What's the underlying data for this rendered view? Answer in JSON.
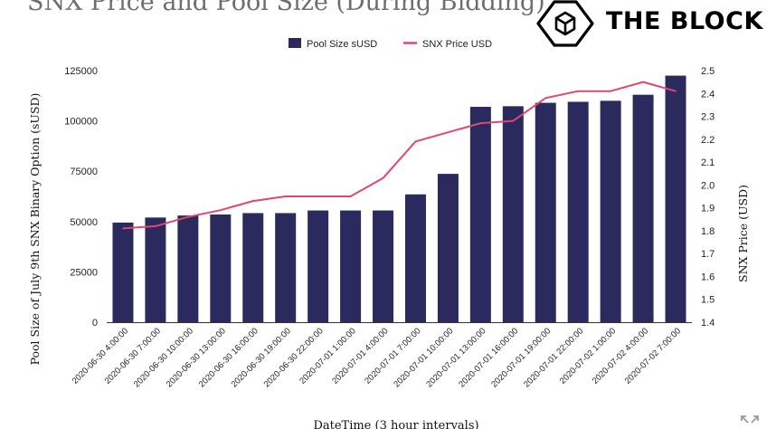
{
  "header": {
    "title": "SNX Price and Pool Size (During Bidding)",
    "brand": "THE BLOCK",
    "logo_icon": "cube-icon",
    "expand_icon": "expand-icon"
  },
  "chart_data": {
    "type": "bar",
    "title": "SNX Price and Pool Size (During Bidding)",
    "xlabel": "DateTime (3 hour intervals)",
    "ylabel": "Pool Size of July 9th SNX Binary Option (sUSD)",
    "y2label": "SNX Price (USD)",
    "ylim": [
      0,
      125000
    ],
    "y2lim": [
      1.4,
      2.5
    ],
    "yticks": [
      "0",
      "25000",
      "50000",
      "75000",
      "100000",
      "125000"
    ],
    "y2ticks": [
      "1.4",
      "1.5",
      "1.6",
      "1.7",
      "1.8",
      "1.9",
      "2.0",
      "2.1",
      "2.2",
      "2.3",
      "2.4",
      "2.5"
    ],
    "grid": false,
    "legend": "top-center",
    "categories": [
      "2020-06-30 4:00:00",
      "2020-06-30 7:00:00",
      "2020-06-30 10:00:00",
      "2020-06-30 13:00:00",
      "2020-06-30 16:00:00",
      "2020-06-30 19:00:00",
      "2020-06-30 22:00:00",
      "2020-07-01 1:00:00",
      "2020-07-01 4:00:00",
      "2020-07-01 7:00:00",
      "2020-07-01 10:00:00",
      "2020-07-01 13:00:00",
      "2020-07-01 16:00:00",
      "2020-07-01 19:00:00",
      "2020-07-01 22:00:00",
      "2020-07-02 1:00:00",
      "2020-07-02 4:00:00",
      "2020-07-02 7:00:00"
    ],
    "series": [
      {
        "name": "Pool Size sUSD",
        "type": "bar",
        "axis": "left",
        "color": "#2b2a5e",
        "values": [
          49500,
          52000,
          53000,
          53500,
          54200,
          54200,
          55500,
          55500,
          55500,
          63500,
          73700,
          107000,
          107300,
          109000,
          109500,
          110000,
          113000,
          122500
        ]
      },
      {
        "name": "SNX Price USD",
        "type": "line",
        "axis": "right",
        "color": "#e0476e",
        "values": [
          1.81,
          1.82,
          1.86,
          1.89,
          1.93,
          1.95,
          1.95,
          1.95,
          2.03,
          2.19,
          2.23,
          2.27,
          2.28,
          2.38,
          2.41,
          2.41,
          2.45,
          2.41
        ]
      }
    ]
  }
}
